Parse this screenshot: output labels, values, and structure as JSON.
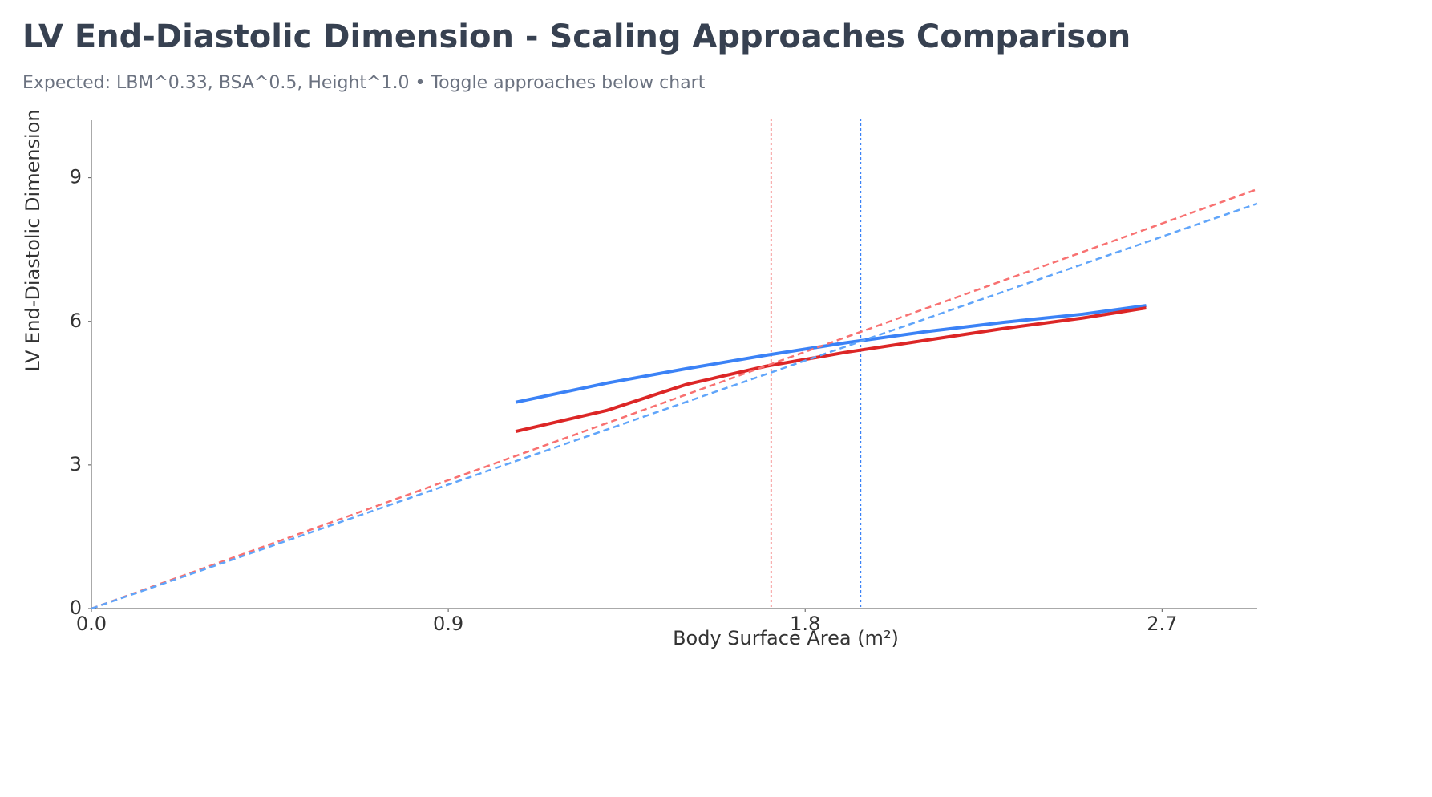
{
  "chart_data": {
    "type": "line",
    "title": "LV End-Diastolic Dimension - Scaling Approaches Comparison",
    "subtitle": "Expected: LBM^0.33, BSA^0.5, Height^1.0 • Toggle approaches below chart",
    "x_label": "Body Surface Area (m²)",
    "y_label": "LV End-Diastolic Dimension",
    "xlim": [
      0,
      2.94
    ],
    "ylim": [
      0,
      10.2
    ],
    "xticks": [
      {
        "value": 0,
        "label": "0.0"
      },
      0.9,
      1.8,
      2.7
    ],
    "yticks": [
      0,
      3,
      6,
      9
    ],
    "series": [
      {
        "color": "#3b82f6",
        "dash": false,
        "x": [
          1.07,
          1.3,
          1.5,
          1.7,
          1.9,
          2.1,
          2.3,
          2.5,
          2.66
        ],
        "values": [
          4.31,
          4.71,
          5.01,
          5.29,
          5.55,
          5.78,
          5.98,
          6.15,
          6.33
        ]
      },
      {
        "color": "#dc2626",
        "dash": false,
        "x": [
          1.07,
          1.3,
          1.5,
          1.7,
          1.9,
          2.1,
          2.3,
          2.5,
          2.66
        ],
        "values": [
          3.7,
          4.14,
          4.68,
          5.06,
          5.35,
          5.6,
          5.85,
          6.07,
          6.28
        ]
      },
      {
        "color": "#f87171",
        "dash": true,
        "x": [
          0,
          2.94
        ],
        "values": [
          0,
          8.76
        ]
      },
      {
        "color": "#60a5fa",
        "dash": true,
        "x": [
          0,
          2.94
        ],
        "values": [
          0,
          8.46
        ]
      }
    ],
    "reference_lines": [
      {
        "x": 1.714,
        "color": "#ef4444"
      },
      {
        "x": 1.94,
        "color": "#3b82f6"
      }
    ]
  }
}
